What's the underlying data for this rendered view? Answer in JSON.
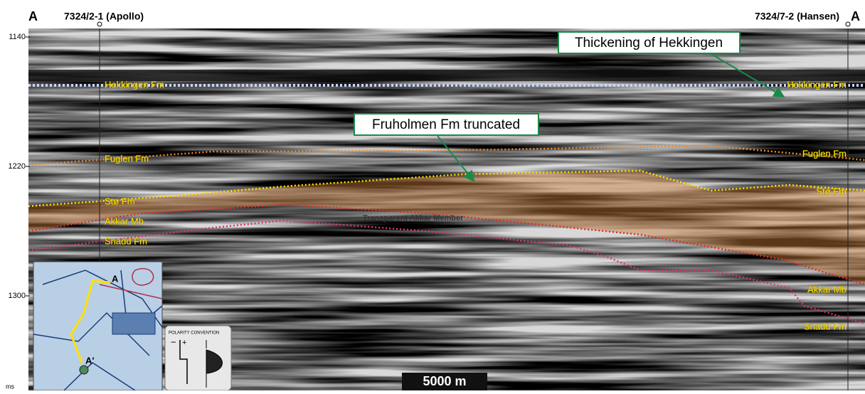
{
  "header": {
    "left_marker": "A",
    "left_well": "7324/2-1 (Apollo)",
    "right_well": "7324/7-2 (Hansen)",
    "right_marker": "A"
  },
  "axis": {
    "ticks": [
      1140,
      1220,
      1300
    ],
    "unit": "ms"
  },
  "callouts": [
    "Thickening of Hekkingen",
    "Fruholmen Fm truncated"
  ],
  "left_labels": [
    "Hekkingen Fm",
    "Fuglen Fm",
    "Stø Fm",
    "Akkar Mb",
    "Snadd Fm"
  ],
  "right_labels": [
    "Hekkingen Fm",
    "Fuglen Fm",
    "Stø Fm",
    "Akkar Mb",
    "Snadd Fm"
  ],
  "annotation": "Transparent Akkar Member",
  "inset": {
    "start": "A",
    "end": "A'"
  },
  "polarity": {
    "title": "POLARITY CONVENTION",
    "minus": "−",
    "plus": "+"
  },
  "scale_bar": "5000 m"
}
